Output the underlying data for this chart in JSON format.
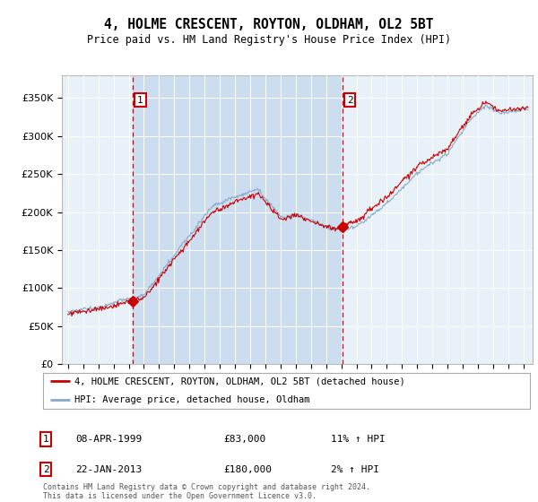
{
  "title": "4, HOLME CRESCENT, ROYTON, OLDHAM, OL2 5BT",
  "subtitle": "Price paid vs. HM Land Registry's House Price Index (HPI)",
  "background_color": "#ffffff",
  "plot_bg_color": "#e8f0f8",
  "shade_color": "#ccddf0",
  "legend_label_red": "4, HOLME CRESCENT, ROYTON, OLDHAM, OL2 5BT (detached house)",
  "legend_label_blue": "HPI: Average price, detached house, Oldham",
  "footer": "Contains HM Land Registry data © Crown copyright and database right 2024.\nThis data is licensed under the Open Government Licence v3.0.",
  "sale1_label": "1",
  "sale1_date": "08-APR-1999",
  "sale1_price": "£83,000",
  "sale1_hpi": "11% ↑ HPI",
  "sale2_label": "2",
  "sale2_date": "22-JAN-2013",
  "sale2_price": "£180,000",
  "sale2_hpi": "2% ↑ HPI",
  "sale1_x": 1999.27,
  "sale1_y": 83000,
  "sale2_x": 2013.06,
  "sale2_y": 180000,
  "ylim": [
    0,
    380000
  ],
  "xlim_start": 1994.6,
  "xlim_end": 2025.6,
  "yticks": [
    0,
    50000,
    100000,
    150000,
    200000,
    250000,
    300000,
    350000
  ],
  "ytick_labels": [
    "£0",
    "£50K",
    "£100K",
    "£150K",
    "£200K",
    "£250K",
    "£300K",
    "£350K"
  ],
  "red_color": "#cc0000",
  "blue_color": "#88aacc",
  "vline_color": "#cc0000",
  "grid_color": "#ffffff",
  "title_fontsize": 10.5,
  "subtitle_fontsize": 8.5
}
